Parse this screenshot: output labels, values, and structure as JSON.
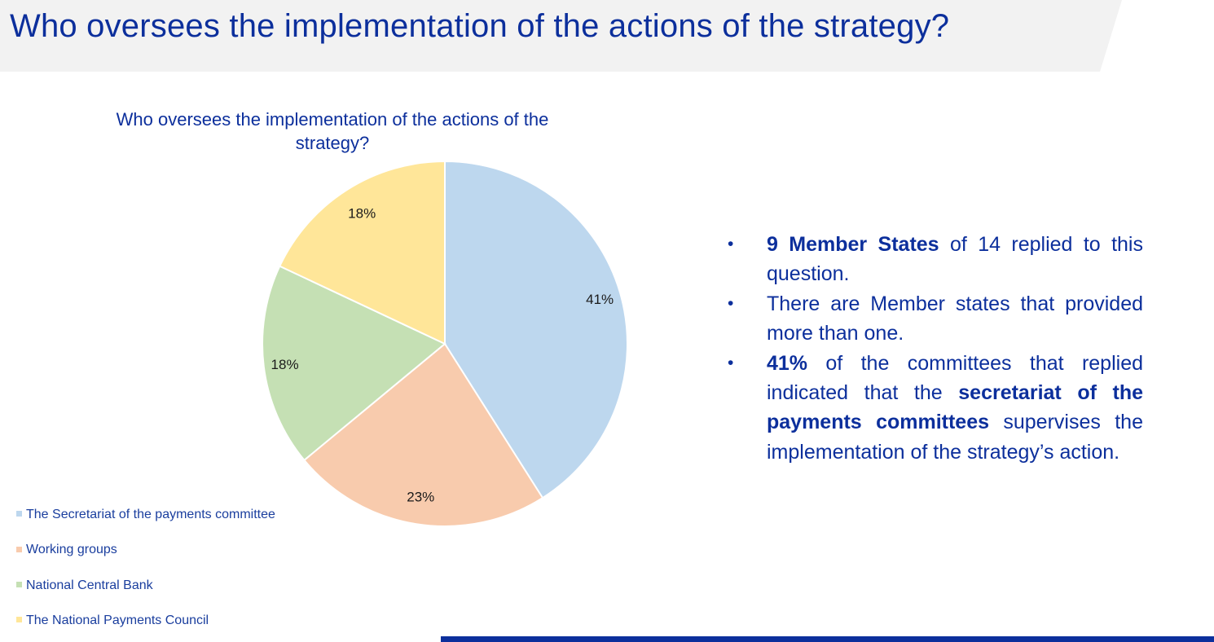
{
  "slide": {
    "title": "Who oversees the implementation of the actions of the strategy?"
  },
  "chart_data": {
    "type": "pie",
    "title": "Who oversees the implementation of the actions of the strategy?",
    "categories": [
      "The Secretariat of the payments committee",
      "Working groups",
      "National Central Bank",
      "The National Payments Council"
    ],
    "values": [
      41,
      23,
      18,
      18
    ],
    "labels": [
      "41%",
      "23%",
      "18%",
      "18%"
    ],
    "colors": [
      "#bdd7ee",
      "#f8cbad",
      "#c5e0b4",
      "#ffe699"
    ],
    "legend_position": "bottom-left"
  },
  "bullets": [
    {
      "segments": [
        {
          "text": "9 Member States",
          "bold": true
        },
        {
          "text": " of 14 replied to this question.",
          "bold": false
        }
      ]
    },
    {
      "segments": [
        {
          "text": "There are Member states that provided more than one.",
          "bold": false
        }
      ]
    },
    {
      "segments": [
        {
          "text": "41%",
          "bold": true
        },
        {
          "text": " of the committees that replied indicated that the ",
          "bold": false
        },
        {
          "text": "secretariat of the payments committees",
          "bold": true
        },
        {
          "text": "  supervises the implementation of the strategy’s action.",
          "bold": false
        }
      ]
    }
  ],
  "bullet_symbol": "•",
  "colors": {
    "title_blue": "#0c2f9c",
    "legend_text": "#1a3e9e",
    "band": "#f2f2f2"
  }
}
